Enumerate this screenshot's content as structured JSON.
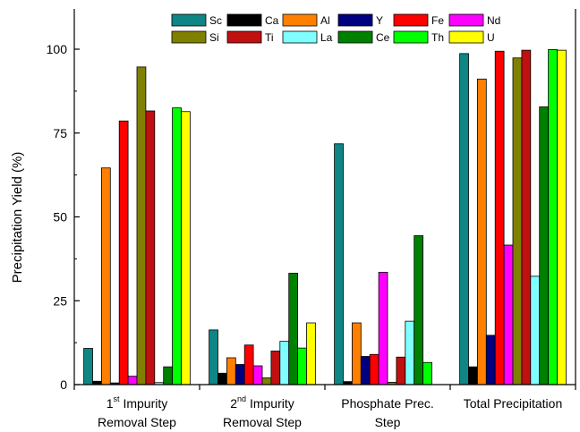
{
  "chart_data": {
    "type": "bar",
    "ylabel": "Precipitation Yield (%)",
    "ylim": [
      0,
      112
    ],
    "yticks": [
      0,
      25,
      50,
      75,
      100
    ],
    "grid": false,
    "legend_position": "top-center",
    "categories": [
      {
        "lines": [
          {
            "pre": "1",
            "sup": "st",
            "post": " Impurity"
          },
          {
            "pre": "Removal Step",
            "sup": "",
            "post": ""
          }
        ]
      },
      {
        "lines": [
          {
            "pre": "2",
            "sup": "nd",
            "post": " Impurity"
          },
          {
            "pre": "Removal Step",
            "sup": "",
            "post": ""
          }
        ]
      },
      {
        "lines": [
          {
            "pre": "Phosphate Prec.",
            "sup": "",
            "post": ""
          },
          {
            "pre": "Step",
            "sup": "",
            "post": ""
          }
        ]
      },
      {
        "lines": [
          {
            "pre": "Total Precipitation",
            "sup": "",
            "post": ""
          }
        ]
      }
    ],
    "series": [
      {
        "name": "Sc",
        "color": "#0f8585",
        "values": [
          10.8,
          16.3,
          71.8,
          98.7
        ]
      },
      {
        "name": "Ca",
        "color": "#000000",
        "values": [
          1.0,
          3.4,
          0.9,
          5.3
        ]
      },
      {
        "name": "Al",
        "color": "#ff8000",
        "values": [
          64.6,
          8.0,
          18.4,
          91.1
        ]
      },
      {
        "name": "Y",
        "color": "#000080",
        "values": [
          0.5,
          6.0,
          8.4,
          14.7
        ]
      },
      {
        "name": "Fe",
        "color": "#ff0000",
        "values": [
          78.6,
          11.8,
          9.0,
          99.4
        ]
      },
      {
        "name": "Nd",
        "color": "#ff00ff",
        "values": [
          2.5,
          5.6,
          33.5,
          41.6
        ]
      },
      {
        "name": "Si",
        "color": "#808000",
        "values": [
          94.7,
          2.0,
          0.7,
          97.4
        ]
      },
      {
        "name": "Ti",
        "color": "#c01010",
        "values": [
          81.6,
          10.0,
          8.2,
          99.7
        ]
      },
      {
        "name": "La",
        "color": "#80ffff",
        "values": [
          0.6,
          12.9,
          18.9,
          32.3
        ]
      },
      {
        "name": "Ce",
        "color": "#008000",
        "values": [
          5.3,
          33.2,
          44.4,
          82.8
        ]
      },
      {
        "name": "Th",
        "color": "#00ff00",
        "values": [
          82.5,
          10.9,
          6.6,
          99.9
        ]
      },
      {
        "name": "U",
        "color": "#ffff00",
        "values": [
          81.4,
          18.4,
          0.0,
          99.7
        ]
      }
    ],
    "legend_order": [
      [
        "Sc",
        "Ca",
        "Al",
        "Y",
        "Fe",
        "Nd"
      ],
      [
        "Si",
        "Ti",
        "La",
        "Ce",
        "Th",
        "U"
      ]
    ]
  }
}
